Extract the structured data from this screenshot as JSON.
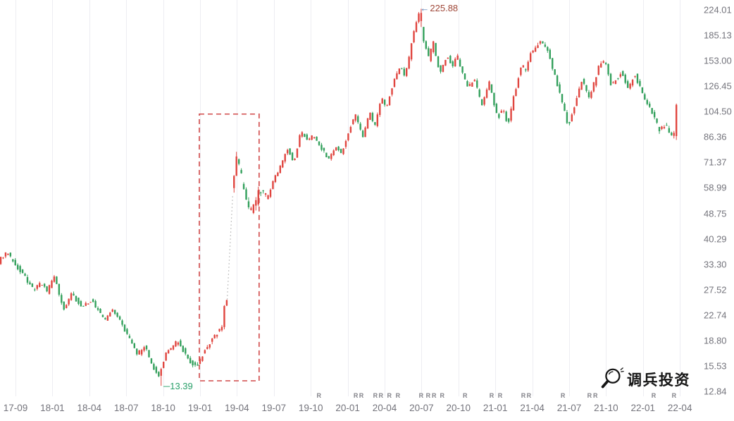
{
  "watermark": {
    "text": "调兵投资",
    "logo": "magnifier-icon"
  },
  "chart_data": {
    "type": "candlestick",
    "title": "",
    "xlabel": "",
    "ylabel": "",
    "y_scale": "log",
    "y_top_value": 224.01,
    "y_ratio_per_tick": 1.21,
    "grid": "vertical-only",
    "legend": "none",
    "x_tick_labels": [
      "17-09",
      "18-01",
      "18-04",
      "18-07",
      "18-10",
      "19-01",
      "19-04",
      "19-07",
      "19-10",
      "20-01",
      "20-04",
      "20-07",
      "20-10",
      "21-01",
      "21-04",
      "21-07",
      "21-10",
      "22-01",
      "22-04"
    ],
    "y_tick_labels": [
      "224.01",
      "185.13",
      "153.00",
      "126.45",
      "104.50",
      "86.36",
      "71.37",
      "58.99",
      "48.75",
      "40.29",
      "33.30",
      "27.52",
      "22.74",
      "18.80",
      "15.53",
      "12.84"
    ],
    "colors": {
      "up": "#e0453f",
      "down": "#33a05c",
      "grid": "#ededf2",
      "axis_text": "#74747c",
      "box": "#d04848",
      "gap_dots": "#b0b0b0",
      "peak_text": "#9e4637",
      "peak_arrow": "#4f7cb4",
      "low_text": "#2aa06a",
      "r_marker": "#83838a",
      "background": "#ffffff"
    },
    "annotations": {
      "peak": {
        "arrow": "←",
        "label": "225.88",
        "u": 11.0,
        "price": 225.88
      },
      "low": {
        "dash": "─",
        "label": "13.39",
        "u": 3.97,
        "price": 13.39
      },
      "highlight_box": {
        "u1": 4.98,
        "u2": 6.6,
        "price_top": 102.6,
        "price_bottom": 13.9
      },
      "gap_dotted_line": {
        "u1": 5.73,
        "u2": 5.885,
        "price1": 24.9,
        "price2": 56.0
      }
    },
    "r_markers_u": [
      8.22,
      9.22,
      9.37,
      9.75,
      9.9,
      10.13,
      10.36,
      10.99,
      11.18,
      11.34,
      11.56,
      12.18,
      12.9,
      13.13,
      13.76,
      13.91,
      14.83,
      15.55,
      15.71,
      17.29,
      17.84
    ],
    "gap": {
      "from_u": 5.735,
      "to_u": 5.885
    },
    "candles": {
      "count": 279,
      "u_start": -0.4,
      "u_end": 17.97,
      "seed": 7
    },
    "low_anchor": {
      "u": 3.93,
      "low": 13.39
    },
    "peak_anchor": {
      "u": 10.99,
      "high": 225.88,
      "open": 206,
      "close": 219,
      "low": 197
    },
    "last_candle": {
      "open": 87,
      "close": 110,
      "high": 111,
      "low": 84.5
    },
    "price_path_keyframes": [
      [
        -0.4,
        34.0
      ],
      [
        -0.18,
        36.4
      ],
      [
        0.1,
        32.8
      ],
      [
        0.57,
        27.3
      ],
      [
        0.76,
        29.4
      ],
      [
        0.92,
        27.0
      ],
      [
        1.11,
        30.4
      ],
      [
        1.37,
        23.7
      ],
      [
        1.6,
        26.7
      ],
      [
        1.87,
        24.1
      ],
      [
        2.12,
        25.5
      ],
      [
        2.48,
        21.8
      ],
      [
        2.71,
        23.8
      ],
      [
        3.09,
        19.7
      ],
      [
        3.38,
        16.9
      ],
      [
        3.55,
        18.0
      ],
      [
        3.82,
        15.2
      ],
      [
        3.93,
        14.1
      ],
      [
        4.16,
        17.3
      ],
      [
        4.47,
        18.7
      ],
      [
        4.77,
        16.1
      ],
      [
        5.0,
        15.6
      ],
      [
        5.13,
        17.0
      ],
      [
        5.5,
        19.8
      ],
      [
        5.65,
        20.5
      ],
      [
        5.73,
        24.8
      ],
      [
        5.88,
        56.0
      ],
      [
        5.97,
        62.0
      ],
      [
        6.05,
        74.0
      ],
      [
        6.3,
        55.0
      ],
      [
        6.45,
        48.8
      ],
      [
        6.68,
        58.0
      ],
      [
        6.87,
        54.0
      ],
      [
        7.12,
        65.0
      ],
      [
        7.31,
        72.0
      ],
      [
        7.44,
        79.5
      ],
      [
        7.6,
        71.0
      ],
      [
        7.79,
        90.0
      ],
      [
        7.98,
        84.0
      ],
      [
        8.13,
        87.5
      ],
      [
        8.55,
        73.0
      ],
      [
        8.74,
        80.0
      ],
      [
        8.89,
        76.0
      ],
      [
        9.06,
        88.0
      ],
      [
        9.27,
        102.5
      ],
      [
        9.47,
        85.5
      ],
      [
        9.66,
        104.0
      ],
      [
        9.79,
        93.0
      ],
      [
        9.98,
        117.0
      ],
      [
        10.11,
        107.0
      ],
      [
        10.31,
        131.0
      ],
      [
        10.5,
        148.0
      ],
      [
        10.61,
        135.0
      ],
      [
        10.74,
        160.0
      ],
      [
        10.84,
        185.0
      ],
      [
        10.99,
        221.0
      ],
      [
        11.1,
        185.0
      ],
      [
        11.26,
        155.0
      ],
      [
        11.37,
        177.0
      ],
      [
        11.56,
        140.0
      ],
      [
        11.76,
        158.0
      ],
      [
        11.91,
        147.0
      ],
      [
        12.02,
        159.0
      ],
      [
        12.33,
        124.0
      ],
      [
        12.48,
        134.0
      ],
      [
        12.71,
        110.0
      ],
      [
        12.9,
        130.0
      ],
      [
        13.13,
        100.0
      ],
      [
        13.28,
        108.0
      ],
      [
        13.4,
        94.0
      ],
      [
        13.63,
        126.0
      ],
      [
        13.78,
        149.0
      ],
      [
        13.89,
        143.0
      ],
      [
        14.01,
        160.0
      ],
      [
        14.27,
        177.0
      ],
      [
        14.46,
        169.0
      ],
      [
        14.81,
        120.0
      ],
      [
        15.04,
        93.5
      ],
      [
        15.42,
        133.0
      ],
      [
        15.61,
        115.0
      ],
      [
        15.9,
        150.0
      ],
      [
        16.03,
        154.0
      ],
      [
        16.22,
        126.0
      ],
      [
        16.47,
        140.0
      ],
      [
        16.66,
        125.0
      ],
      [
        16.85,
        138.0
      ],
      [
        17.04,
        120.0
      ],
      [
        17.23,
        108.0
      ],
      [
        17.52,
        90.0
      ],
      [
        17.67,
        95.0
      ],
      [
        17.86,
        85.0
      ],
      [
        17.9,
        87.0
      ],
      [
        17.97,
        110.0
      ]
    ]
  }
}
